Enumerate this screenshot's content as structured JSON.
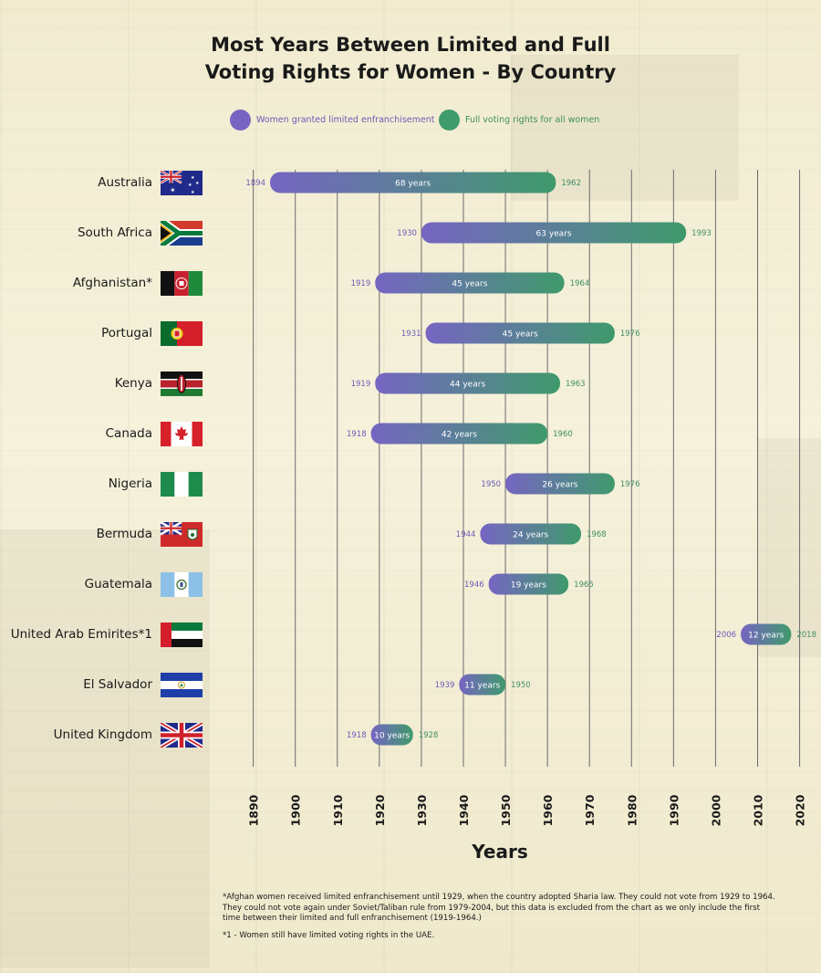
{
  "chart_data": {
    "type": "bar",
    "title": "Most Years Between Limited and Full\nVoting Rights for Women - By Country",
    "xlabel": "Years",
    "xlim": [
      1884,
      2024
    ],
    "ticks": [
      "1890",
      "1900",
      "1910",
      "1920",
      "1930",
      "1940",
      "1950",
      "1960",
      "1970",
      "1980",
      "1990",
      "2000",
      "2010",
      "2020"
    ],
    "legend": [
      {
        "label": "Women granted limited enfranchisement",
        "color": "#7665c2"
      },
      {
        "label": "Full voting rights for all women",
        "color": "#3f9a6c"
      }
    ],
    "rows": [
      {
        "country": "Australia",
        "start": 1894,
        "end": 1962,
        "start_label": "1894",
        "end_label": "1962",
        "duration": "68 years"
      },
      {
        "country": "South Africa",
        "start": 1930,
        "end": 1993,
        "start_label": "1930",
        "end_label": "1993",
        "duration": "63 years"
      },
      {
        "country": "Afghanistan*",
        "start": 1919,
        "end": 1964,
        "start_label": "1919",
        "end_label": "1964",
        "duration": "45 years"
      },
      {
        "country": "Portugal",
        "start": 1931,
        "end": 1976,
        "start_label": "1931",
        "end_label": "1976",
        "duration": "45 years"
      },
      {
        "country": "Kenya",
        "start": 1919,
        "end": 1963,
        "start_label": "1919",
        "end_label": "1963",
        "duration": "44 years"
      },
      {
        "country": "Canada",
        "start": 1918,
        "end": 1960,
        "start_label": "1918",
        "end_label": "1960",
        "duration": "42 years"
      },
      {
        "country": "Nigeria",
        "start": 1950,
        "end": 1976,
        "start_label": "1950",
        "end_label": "1976",
        "duration": "26 years"
      },
      {
        "country": "Bermuda",
        "start": 1944,
        "end": 1968,
        "start_label": "1944",
        "end_label": "1968",
        "duration": "24 years"
      },
      {
        "country": "Guatemala",
        "start": 1946,
        "end": 1965,
        "start_label": "1946",
        "end_label": "1965",
        "duration": "19 years"
      },
      {
        "country": "United Arab Emirites*1",
        "start": 2006,
        "end": 2018,
        "start_label": "2006",
        "end_label": "2018",
        "duration": "12 years"
      },
      {
        "country": "El Salvador",
        "start": 1939,
        "end": 1950,
        "start_label": "1939",
        "end_label": "1950",
        "duration": "11 years"
      },
      {
        "country": "United Kingdom",
        "start": 1918,
        "end": 1928,
        "start_label": "1918",
        "end_label": "1928",
        "duration": "10 years"
      }
    ]
  },
  "flags": [
    "australia-flag-icon",
    "south-africa-flag-icon",
    "afghanistan-flag-icon",
    "portugal-flag-icon",
    "kenya-flag-icon",
    "canada-flag-icon",
    "nigeria-flag-icon",
    "bermuda-flag-icon",
    "guatemala-flag-icon",
    "uae-flag-icon",
    "el-salvador-flag-icon",
    "united-kingdom-flag-icon"
  ],
  "footnotes": {
    "afghanistan": "*Afghan women received limited enfranchisement until 1929, when the country adopted Sharia law. They could not vote from 1929 to 1964. They could not vote again under Soviet/Taliban rule from 1979-2004, but this data is excluded from the chart as we only include the first time       between their limited and full enfranchisement (1919-1964.)",
    "uae": "*1 - Women still have limited voting rights in the UAE."
  }
}
